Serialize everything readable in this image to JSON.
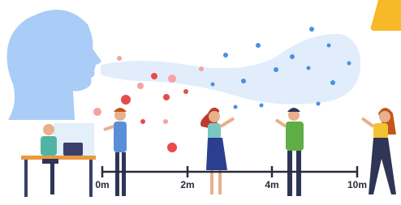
{
  "scale": {
    "labels": [
      "0m",
      "2m",
      "4m",
      "10m"
    ]
  }
}
